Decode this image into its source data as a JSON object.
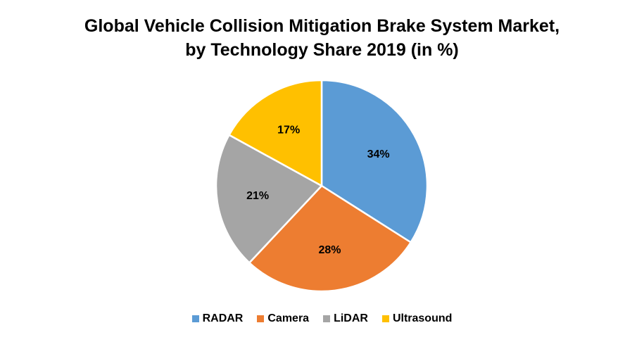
{
  "chart_data": {
    "type": "pie",
    "title": "Global Vehicle Collision Mitigation Brake System Market, by Technology Share 2019 (in %)",
    "title_lines": [
      "Global Vehicle Collision Mitigation Brake System Market,",
      "by Technology Share 2019 (in %)"
    ],
    "categories": [
      "RADAR",
      "Camera",
      "LiDAR",
      "Ultrasound"
    ],
    "values": [
      34,
      28,
      21,
      17
    ],
    "data_labels": [
      "34%",
      "28%",
      "21%",
      "17%"
    ],
    "colors": [
      "#5B9BD5",
      "#ED7D31",
      "#A5A5A5",
      "#FFC000"
    ],
    "legend_position": "bottom",
    "start_angle": "12 o'clock, clockwise"
  }
}
